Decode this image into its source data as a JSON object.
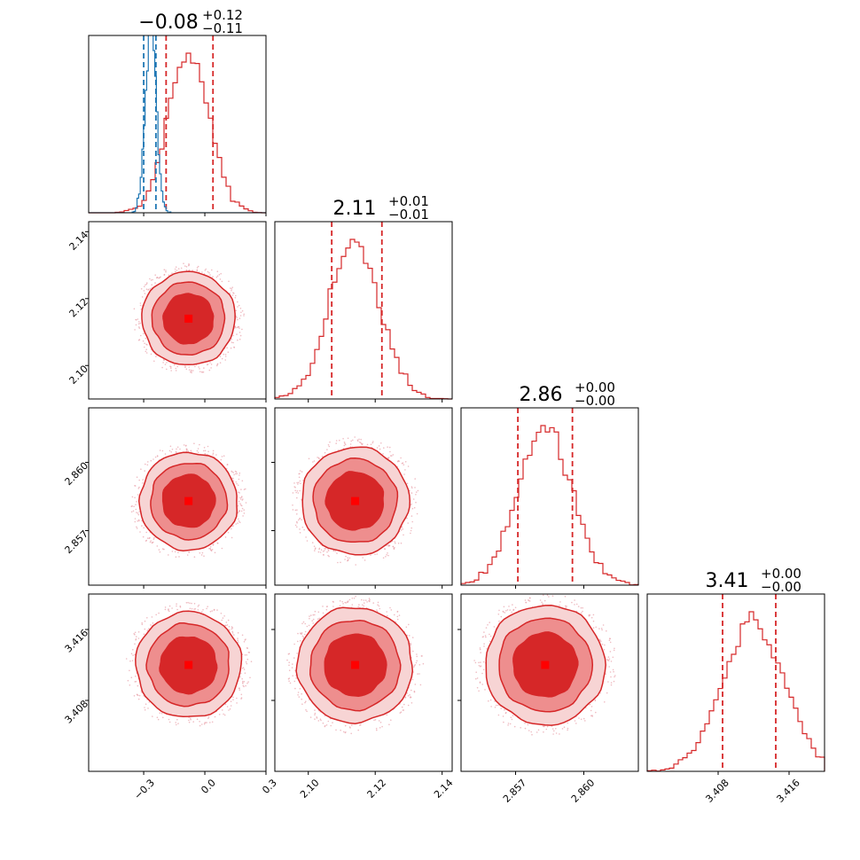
{
  "chart_data": {
    "type": "corner",
    "n_params": 4,
    "colors": {
      "primary": "#d62728",
      "secondary": "#1f77b4",
      "level_outer": "#f7d4d4",
      "level_mid": "#ee8e8e",
      "level_inner": "#d62728",
      "scatter": "#e8a0a8"
    },
    "parameters": [
      {
        "median": -0.08,
        "q_lo": -0.19,
        "q_hi": 0.04,
        "sigma": 0.1,
        "range": [
          -0.57,
          0.3
        ],
        "ticks": [
          -0.3,
          0.0,
          0.3
        ],
        "tick_labels": [
          "−0.3",
          "0.0",
          "0.3"
        ],
        "title": {
          "value": "−0.08",
          "plus": "+0.12",
          "minus": "−0.11"
        }
      },
      {
        "median": 2.114,
        "q_lo": 2.107,
        "q_hi": 2.122,
        "sigma": 0.0075,
        "range": [
          2.09,
          2.143
        ],
        "ticks": [
          2.1,
          2.12,
          2.14
        ],
        "tick_labels": [
          "2.10",
          "2.12",
          "2.14"
        ],
        "title": {
          "value": "2.11",
          "plus": "+0.01",
          "minus": "−0.01"
        }
      },
      {
        "median": 2.8583,
        "q_lo": 2.8571,
        "q_hi": 2.8595,
        "sigma": 0.0012,
        "range": [
          2.8546,
          2.8624
        ],
        "ticks": [
          2.857,
          2.86
        ],
        "tick_labels": [
          "2.857",
          "2.860"
        ],
        "title": {
          "value": "2.86",
          "plus": "+0.00",
          "minus": "−0.00"
        }
      },
      {
        "median": 3.412,
        "q_lo": 3.4085,
        "q_hi": 3.4145,
        "sigma": 0.0035,
        "range": [
          3.4,
          3.42
        ],
        "ticks": [
          3.408,
          3.416
        ],
        "tick_labels": [
          "3.408",
          "3.416"
        ],
        "title": {
          "value": "3.41",
          "plus": "+0.00",
          "minus": "−0.00"
        }
      }
    ],
    "secondary_series": {
      "param_index": 0,
      "mean": -0.265,
      "sigma": 0.026,
      "q_lo": -0.3,
      "q_hi": -0.24
    }
  }
}
